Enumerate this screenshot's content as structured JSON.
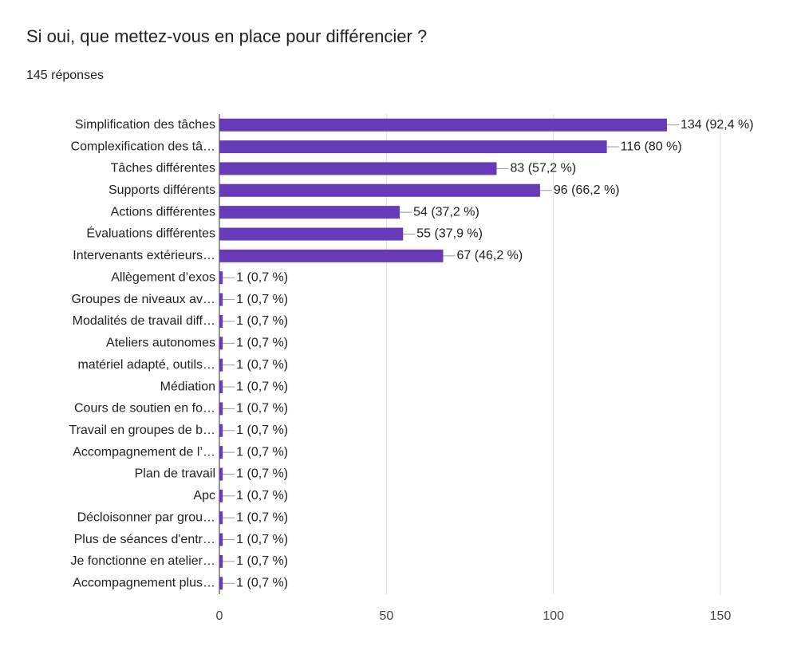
{
  "chart_data": {
    "type": "bar",
    "orientation": "horizontal",
    "title": "Si oui, que mettez-vous en place pour différencier ?",
    "subtitle": "145 réponses",
    "categories": [
      "Simplification des tâches",
      "Complexification des tâ…",
      "Tâches différentes",
      "Supports différents",
      "Actions différentes",
      "Évaluations différentes",
      "Intervenants extérieurs…",
      "Allègement d’exos",
      "Groupes de niveaux av…",
      "Modalités de travail diff…",
      "Ateliers autonomes",
      "matériel adapté, outils…",
      "Médiation",
      "Cours de soutien en fo…",
      "Travail en groupes de b…",
      "Accompagnement de l’…",
      "Plan de travail",
      "Apc",
      "Décloisonner par grou…",
      "Plus de séances d'entr…",
      "Je fonctionne en atelier…",
      "Accompagnement plus…"
    ],
    "values": [
      134,
      116,
      83,
      96,
      54,
      55,
      67,
      1,
      1,
      1,
      1,
      1,
      1,
      1,
      1,
      1,
      1,
      1,
      1,
      1,
      1,
      1
    ],
    "value_labels": [
      "134 (92,4 %)",
      "116 (80 %)",
      "83 (57,2 %)",
      "96 (66,2 %)",
      "54 (37,2 %)",
      "55 (37,9 %)",
      "67 (46,2 %)",
      "1 (0,7 %)",
      "1 (0,7 %)",
      "1 (0,7 %)",
      "1 (0,7 %)",
      "1 (0,7 %)",
      "1 (0,7 %)",
      "1 (0,7 %)",
      "1 (0,7 %)",
      "1 (0,7 %)",
      "1 (0,7 %)",
      "1 (0,7 %)",
      "1 (0,7 %)",
      "1 (0,7 %)",
      "1 (0,7 %)",
      "1 (0,7 %)"
    ],
    "color": "#673ab7",
    "xlim": [
      0,
      150
    ],
    "xticks": [
      0,
      50,
      100,
      150
    ],
    "grid": true
  }
}
